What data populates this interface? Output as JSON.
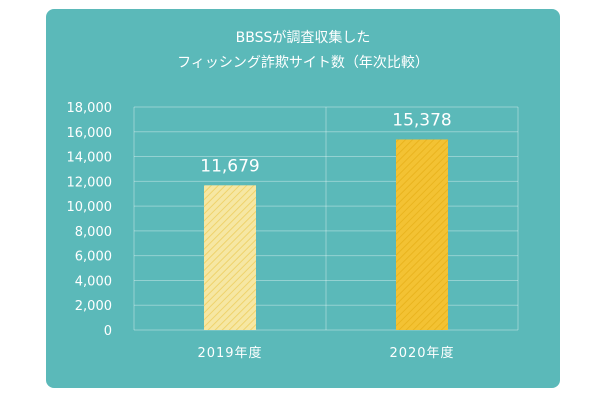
{
  "title_line1": "BBSSが調査収集した",
  "title_line2": "フィッシング詐欺サイト数（年次比較）",
  "colors": {
    "background": "#5bb9b9",
    "bar_2019": "#f6e7a3",
    "bar_2019_stripe": "#efd36c",
    "bar_2020": "#f3c233",
    "bar_2020_stripe": "#e9b41f",
    "text": "#ffffff"
  },
  "chart_data": {
    "type": "bar",
    "title": "BBSSが調査収集した フィッシング詐欺サイト数（年次比較）",
    "categories": [
      "2019年度",
      "2020年度"
    ],
    "values": [
      11679,
      15378
    ],
    "data_labels": [
      "11,679",
      "15,378"
    ],
    "ylim": [
      0,
      18000
    ],
    "yticks": [
      0,
      2000,
      4000,
      6000,
      8000,
      10000,
      12000,
      14000,
      16000,
      18000
    ],
    "ytick_labels": [
      "0",
      "2,000",
      "4,000",
      "6,000",
      "8,000",
      "10,000",
      "12,000",
      "14,000",
      "16,000",
      "18,000"
    ],
    "grid": true,
    "legend": "none"
  }
}
